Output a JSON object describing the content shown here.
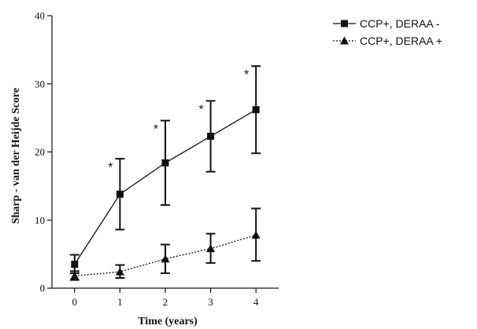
{
  "chart_data": {
    "type": "line",
    "title": "",
    "xlabel": "Time (years)",
    "ylabel": "Sharp - van der Heijde Score",
    "x": [
      0,
      1,
      2,
      3,
      4
    ],
    "x_tick_labels": [
      "0",
      "1",
      "2",
      "3",
      "4"
    ],
    "y_ticks": [
      0,
      10,
      20,
      30,
      40
    ],
    "y_tick_labels": [
      "0",
      "10",
      "20",
      "30",
      "40"
    ],
    "xlim": [
      -0.5,
      4.5
    ],
    "ylim": [
      0,
      40
    ],
    "grid": false,
    "legend_position": "top-right",
    "series": [
      {
        "name": "CCP+, DERAA -",
        "marker": "square",
        "line_style": "solid",
        "values": [
          3.5,
          13.8,
          18.4,
          22.3,
          26.2
        ],
        "error_low": [
          2.2,
          8.6,
          12.2,
          17.1,
          19.8
        ],
        "error_high": [
          4.9,
          19.0,
          24.6,
          27.5,
          32.6
        ]
      },
      {
        "name": "CCP+, DERAA +",
        "marker": "triangle",
        "line_style": "dotted",
        "values": [
          1.8,
          2.4,
          4.3,
          5.8,
          7.8
        ],
        "error_low": [
          1.2,
          1.5,
          2.2,
          3.7,
          4.0
        ],
        "error_high": [
          2.5,
          3.4,
          6.4,
          8.0,
          11.7
        ]
      }
    ],
    "annotations": [
      {
        "x": 1,
        "y": 19.0,
        "text": "*"
      },
      {
        "x": 2,
        "y": 24.6,
        "text": "*"
      },
      {
        "x": 3,
        "y": 27.5,
        "text": "*"
      },
      {
        "x": 4,
        "y": 32.6,
        "text": "*"
      }
    ],
    "colors": {
      "line": "#111111",
      "background": "#ffffff"
    }
  }
}
